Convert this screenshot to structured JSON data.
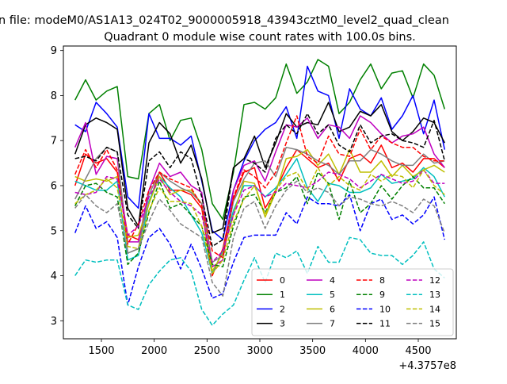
{
  "chart_data": {
    "type": "line",
    "suptitle": "n file: modeM0/AS1A13_024T02_9000005918_43943cztM0_level2_quad_clean",
    "title": "Quadrant 0 module wise count rates with 100.0s bins.",
    "xlabel": "",
    "ylabel": "",
    "x_offset_label": "+4.3757e8",
    "xlim": [
      1140,
      4860
    ],
    "ylim": [
      2.6,
      9.1
    ],
    "x_ticks": [
      1500,
      2000,
      2500,
      3000,
      3500,
      4000,
      4500
    ],
    "x_tick_labels": [
      "1500",
      "2000",
      "2500",
      "3000",
      "3500",
      "4000",
      "4500"
    ],
    "y_ticks": [
      3,
      4,
      5,
      6,
      7,
      8,
      9
    ],
    "y_tick_labels": [
      "3",
      "4",
      "5",
      "6",
      "7",
      "8",
      "9"
    ],
    "grid": false,
    "legend_position": "lower-right",
    "x": [
      1250,
      1350,
      1450,
      1550,
      1650,
      1750,
      1850,
      1950,
      2050,
      2150,
      2250,
      2350,
      2450,
      2550,
      2650,
      2750,
      2850,
      2950,
      3050,
      3150,
      3250,
      3350,
      3450,
      3550,
      3650,
      3750,
      3850,
      3950,
      4050,
      4150,
      4250,
      4350,
      4450,
      4550,
      4650,
      4750
    ],
    "series": [
      {
        "name": "0",
        "color": "#ff0000",
        "dash": false,
        "values": [
          6.0,
          6.7,
          6.5,
          6.6,
          6.3,
          4.9,
          4.8,
          5.6,
          6.3,
          5.9,
          5.9,
          5.8,
          5.5,
          4.0,
          4.6,
          5.7,
          6.3,
          6.4,
          5.5,
          5.9,
          6.4,
          6.8,
          6.6,
          6.4,
          6.5,
          6.1,
          6.6,
          6.7,
          6.5,
          6.9,
          6.4,
          6.5,
          6.3,
          6.6,
          6.6,
          6.4
        ]
      },
      {
        "name": "1",
        "color": "#008000",
        "dash": false,
        "values": [
          7.9,
          8.35,
          7.9,
          8.1,
          8.2,
          6.2,
          6.15,
          7.6,
          7.8,
          7.0,
          7.45,
          7.5,
          6.8,
          5.6,
          5.25,
          6.3,
          7.8,
          7.85,
          7.7,
          7.95,
          8.7,
          8.05,
          8.3,
          8.8,
          8.65,
          7.6,
          7.85,
          8.35,
          8.7,
          8.15,
          8.5,
          8.55,
          7.95,
          8.7,
          8.45,
          7.7
        ]
      },
      {
        "name": "2",
        "color": "#0000ff",
        "dash": false,
        "values": [
          7.35,
          7.2,
          7.85,
          7.6,
          7.3,
          5.75,
          5.5,
          7.6,
          7.05,
          7.05,
          6.9,
          7.1,
          6.1,
          5.0,
          4.8,
          5.9,
          6.55,
          7.0,
          7.25,
          7.4,
          7.75,
          7.05,
          8.65,
          8.1,
          8.0,
          7.05,
          8.15,
          7.7,
          7.55,
          7.95,
          7.25,
          7.55,
          8.0,
          7.15,
          7.9,
          6.8
        ]
      },
      {
        "name": "3",
        "color": "#000000",
        "dash": false,
        "values": [
          6.7,
          7.35,
          7.5,
          7.4,
          7.25,
          5.5,
          5.1,
          6.95,
          7.4,
          7.15,
          6.5,
          6.9,
          6.15,
          4.95,
          5.05,
          6.4,
          6.6,
          7.1,
          6.4,
          6.95,
          7.6,
          7.3,
          7.4,
          7.35,
          7.85,
          7.2,
          7.3,
          7.65,
          7.55,
          7.8,
          7.2,
          7.0,
          7.2,
          7.5,
          7.4,
          6.95
        ]
      },
      {
        "name": "4",
        "color": "#bf00bf",
        "dash": false,
        "values": [
          6.85,
          7.4,
          6.25,
          6.65,
          6.6,
          4.75,
          4.75,
          5.9,
          6.5,
          6.2,
          6.3,
          6.0,
          5.85,
          4.2,
          4.35,
          5.9,
          6.45,
          6.55,
          6.1,
          6.75,
          7.35,
          7.3,
          7.5,
          7.05,
          7.35,
          7.3,
          7.05,
          7.55,
          7.4,
          7.15,
          6.95,
          7.1,
          7.15,
          7.3,
          6.7,
          6.4
        ]
      },
      {
        "name": "5",
        "color": "#00bfbf",
        "dash": false,
        "values": [
          6.1,
          6.0,
          5.9,
          5.9,
          6.1,
          4.35,
          4.45,
          5.65,
          6.2,
          5.95,
          5.75,
          5.35,
          4.95,
          4.05,
          4.55,
          5.45,
          6.0,
          6.0,
          5.75,
          5.95,
          6.25,
          6.6,
          5.95,
          5.65,
          6.05,
          6.0,
          5.85,
          5.85,
          5.95,
          6.25,
          6.05,
          6.1,
          6.15,
          6.4,
          6.2,
          5.75
        ]
      },
      {
        "name": "6",
        "color": "#bfbf00",
        "dash": false,
        "values": [
          6.2,
          6.1,
          6.15,
          6.1,
          6.2,
          4.85,
          4.9,
          5.6,
          6.2,
          5.8,
          5.9,
          5.9,
          5.6,
          4.1,
          4.5,
          5.35,
          6.1,
          6.05,
          5.3,
          5.85,
          6.6,
          6.65,
          6.8,
          6.45,
          6.7,
          6.25,
          6.8,
          6.3,
          6.3,
          6.55,
          6.2,
          6.45,
          6.2,
          6.35,
          6.45,
          6.3
        ]
      },
      {
        "name": "7",
        "color": "#808080",
        "dash": false,
        "values": [
          5.7,
          6.15,
          6.6,
          6.85,
          6.75,
          4.5,
          4.6,
          5.8,
          6.3,
          6.1,
          5.95,
          5.85,
          5.6,
          4.3,
          4.45,
          5.65,
          6.15,
          6.5,
          6.55,
          6.2,
          6.85,
          6.8,
          6.7,
          6.55,
          6.45,
          6.25,
          6.55,
          6.55,
          6.8,
          6.7,
          6.55,
          6.45,
          6.45,
          6.7,
          6.5,
          6.55
        ]
      },
      {
        "name": "8",
        "color": "#ff0000",
        "dash": true,
        "values": [
          6.25,
          6.8,
          6.4,
          6.8,
          6.35,
          4.7,
          5.15,
          5.9,
          6.3,
          6.15,
          6.05,
          5.95,
          5.55,
          4.55,
          4.4,
          5.75,
          6.35,
          6.2,
          5.95,
          6.3,
          6.95,
          7.55,
          6.65,
          6.5,
          7.1,
          6.7,
          6.65,
          7.25,
          6.8,
          7.1,
          6.95,
          6.85,
          6.85,
          6.65,
          6.55,
          6.55
        ]
      },
      {
        "name": "9",
        "color": "#008000",
        "dash": true,
        "values": [
          5.55,
          6.0,
          6.05,
          5.85,
          5.75,
          4.25,
          4.5,
          5.4,
          6.1,
          5.5,
          5.6,
          5.35,
          5.1,
          4.25,
          4.2,
          5.1,
          5.75,
          5.8,
          5.4,
          5.85,
          5.95,
          6.2,
          5.6,
          6.3,
          6.05,
          5.25,
          6.1,
          5.4,
          5.6,
          6.0,
          5.7,
          6.0,
          6.2,
          5.95,
          5.95,
          5.6
        ]
      },
      {
        "name": "10",
        "color": "#0000ff",
        "dash": true,
        "values": [
          4.95,
          5.55,
          5.05,
          5.2,
          4.85,
          3.35,
          4.2,
          4.85,
          5.05,
          4.7,
          4.15,
          4.7,
          4.15,
          3.5,
          3.6,
          4.3,
          4.85,
          4.9,
          4.9,
          4.9,
          5.4,
          5.15,
          5.75,
          5.6,
          5.6,
          5.55,
          5.8,
          5.0,
          5.6,
          5.7,
          5.25,
          5.35,
          5.15,
          5.35,
          5.75,
          4.8
        ]
      },
      {
        "name": "11",
        "color": "#000000",
        "dash": true,
        "values": [
          6.6,
          6.65,
          6.55,
          6.85,
          6.75,
          5.35,
          5.05,
          6.55,
          6.75,
          6.4,
          6.75,
          6.6,
          5.75,
          4.65,
          4.8,
          6.4,
          6.6,
          6.5,
          6.3,
          7.05,
          7.35,
          7.15,
          7.6,
          7.15,
          7.35,
          6.9,
          6.75,
          7.35,
          6.95,
          7.1,
          7.15,
          7.0,
          6.95,
          6.85,
          7.45,
          6.55
        ]
      },
      {
        "name": "12",
        "color": "#bf00bf",
        "dash": true,
        "values": [
          5.85,
          5.8,
          5.85,
          6.2,
          6.15,
          4.9,
          5.1,
          5.75,
          6.15,
          5.85,
          5.65,
          5.55,
          5.35,
          4.3,
          4.55,
          5.35,
          5.9,
          6.0,
          5.75,
          5.85,
          6.05,
          6.0,
          5.95,
          6.1,
          6.3,
          6.25,
          6.15,
          5.95,
          6.1,
          6.25,
          6.15,
          6.05,
          6.1,
          6.35,
          6.05,
          6.05
        ]
      },
      {
        "name": "13",
        "color": "#00bfbf",
        "dash": true,
        "values": [
          4.0,
          4.35,
          4.3,
          4.35,
          4.35,
          3.35,
          3.25,
          3.8,
          4.1,
          4.35,
          4.4,
          4.1,
          3.25,
          2.9,
          3.15,
          3.35,
          3.9,
          4.4,
          3.85,
          4.5,
          4.4,
          4.55,
          4.05,
          4.65,
          4.3,
          4.3,
          4.85,
          4.8,
          4.5,
          4.45,
          4.45,
          4.25,
          4.45,
          4.75,
          4.15,
          3.95
        ]
      },
      {
        "name": "14",
        "color": "#bfbf00",
        "dash": true,
        "values": [
          5.6,
          5.8,
          5.9,
          6.15,
          5.95,
          4.65,
          4.6,
          5.45,
          5.95,
          5.65,
          5.65,
          5.6,
          5.1,
          4.05,
          4.35,
          5.2,
          5.7,
          6.0,
          5.35,
          5.9,
          6.2,
          6.3,
          5.9,
          6.4,
          6.0,
          6.2,
          6.0,
          5.9,
          6.25,
          6.1,
          6.25,
          6.2,
          5.95,
          6.35,
          6.0,
          5.8
        ]
      },
      {
        "name": "15",
        "color": "#808080",
        "dash": true,
        "values": [
          5.5,
          5.8,
          5.55,
          5.4,
          5.6,
          4.5,
          4.6,
          5.2,
          5.7,
          5.45,
          5.15,
          5.0,
          4.85,
          3.85,
          3.55,
          4.85,
          5.5,
          5.65,
          5.05,
          5.55,
          5.9,
          6.1,
          5.85,
          5.95,
          5.85,
          5.55,
          5.75,
          5.7,
          5.6,
          5.55,
          5.65,
          5.55,
          5.4,
          5.7,
          5.55,
          4.95
        ]
      }
    ]
  }
}
